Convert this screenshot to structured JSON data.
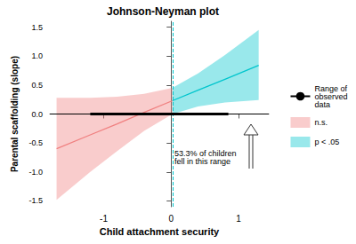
{
  "chart_data": {
    "type": "line",
    "title": "Johnson-Neyman plot",
    "x_label": "Child attachment security",
    "y_label": "Parental scaffolding (slope)",
    "xlim": [
      -1.8,
      1.45
    ],
    "xticks": [
      -1,
      0,
      1
    ],
    "ylim": [
      -1.6,
      1.6
    ],
    "yticks": [
      -1.5,
      {
        "value": -1,
        "label": "-1.0"
      },
      -0.5,
      {
        "value": 0,
        "label": "0.0"
      },
      0.5,
      {
        "value": 1,
        "label": "1.0"
      },
      1.5
    ],
    "grid": false,
    "legend": "right",
    "reference_line": 0,
    "jn_point": 0.02,
    "annotation": "53.3% of children fell in this range",
    "series": [
      {
        "name": "Range of observed data",
        "type": "line",
        "color": "#000000",
        "x": [
          -1.2,
          0.85
        ],
        "values": [
          0,
          0
        ]
      },
      {
        "name": "n.s.",
        "type": "line",
        "color": "#f08080",
        "x": [
          -1.7,
          -1.2,
          -0.8,
          -0.4,
          0.02
        ],
        "values": [
          -0.6,
          -0.36,
          -0.17,
          0.03,
          0.23
        ],
        "lower": [
          -1.48,
          -1.0,
          -0.64,
          -0.29,
          0.0
        ],
        "upper": [
          0.28,
          0.28,
          0.3,
          0.35,
          0.45
        ]
      },
      {
        "name": "p < .05",
        "type": "line",
        "color": "#00c5cd",
        "x": [
          0.02,
          0.4,
          0.8,
          1.3
        ],
        "values": [
          0.23,
          0.41,
          0.6,
          0.84
        ],
        "lower": [
          0.0,
          0.13,
          0.2,
          0.24
        ],
        "upper": [
          0.45,
          0.7,
          1.02,
          1.45
        ]
      }
    ]
  }
}
